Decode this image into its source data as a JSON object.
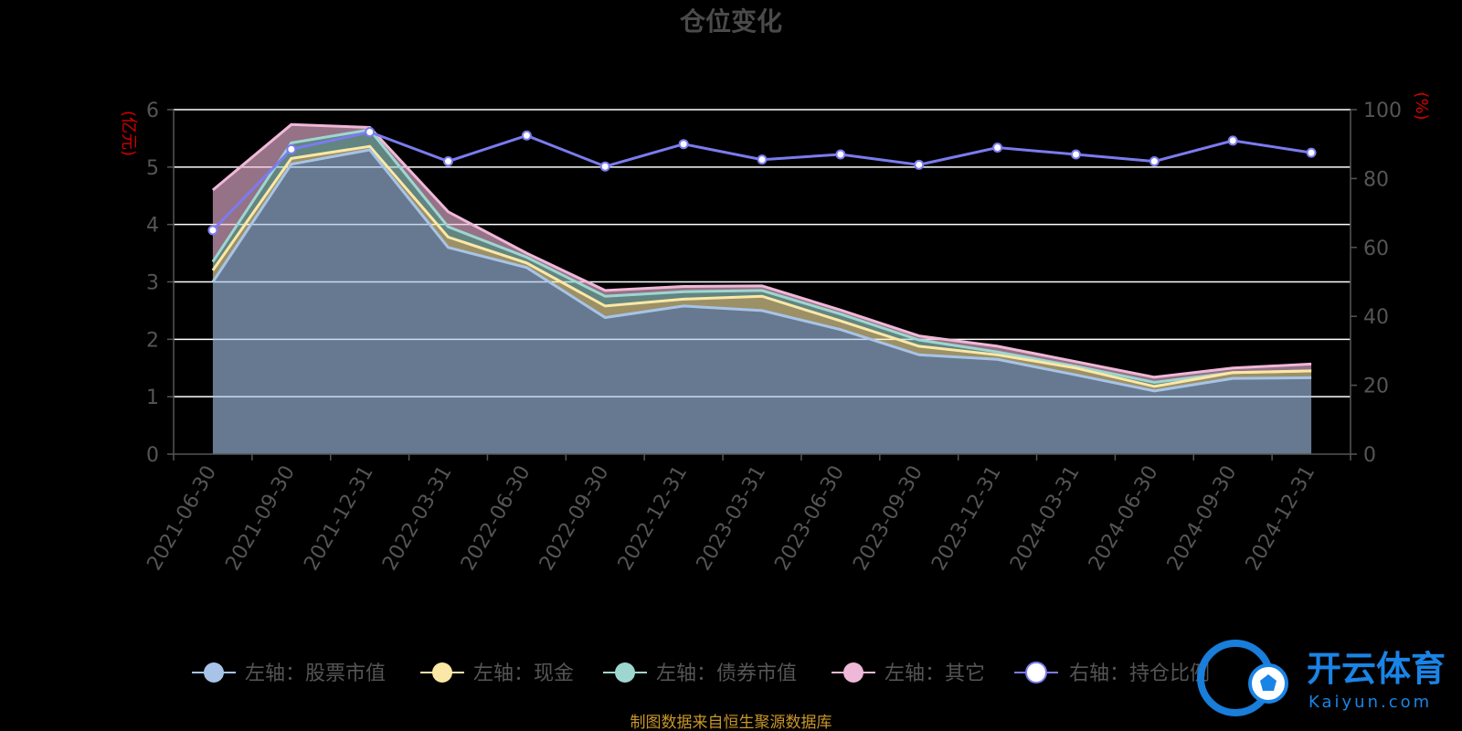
{
  "chart_data": {
    "type": "area",
    "title": "仓位变化",
    "left_axis_unit": "(亿元)",
    "right_axis_unit": "(%)",
    "categories": [
      "2021-06-30",
      "2021-09-30",
      "2021-12-31",
      "2022-03-31",
      "2022-06-30",
      "2022-09-30",
      "2022-12-31",
      "2023-03-31",
      "2023-06-30",
      "2023-09-30",
      "2023-12-31",
      "2024-03-31",
      "2024-06-30",
      "2024-09-30",
      "2024-12-31"
    ],
    "left_ylim": [
      0,
      6
    ],
    "left_ticks": [
      0,
      1,
      2,
      3,
      4,
      5,
      6
    ],
    "right_ylim": [
      0,
      100
    ],
    "right_ticks": [
      0,
      20,
      40,
      60,
      80,
      100
    ],
    "grid": true,
    "legend_position": "bottom",
    "stacked_series": [
      {
        "name": "左轴：股票市值",
        "color": "#a7c4e8",
        "values": [
          3.0,
          5.05,
          5.3,
          3.6,
          3.25,
          2.38,
          2.58,
          2.5,
          2.17,
          1.73,
          1.65,
          1.38,
          1.1,
          1.32,
          1.33
        ]
      },
      {
        "name": "左轴：现金",
        "color": "#fbe8a6",
        "values": [
          0.2,
          0.1,
          0.06,
          0.18,
          0.08,
          0.2,
          0.12,
          0.25,
          0.15,
          0.15,
          0.08,
          0.12,
          0.08,
          0.1,
          0.12
        ]
      },
      {
        "name": "左轴：债券市值",
        "color": "#9ed6d0",
        "values": [
          0.15,
          0.27,
          0.29,
          0.18,
          0.1,
          0.17,
          0.13,
          0.1,
          0.12,
          0.11,
          0.05,
          0.03,
          0.07,
          0.0,
          0.0
        ]
      },
      {
        "name": "左轴：其它",
        "color": "#f0b8d8",
        "values": [
          1.25,
          0.32,
          0.04,
          0.26,
          0.07,
          0.1,
          0.09,
          0.08,
          0.07,
          0.07,
          0.1,
          0.08,
          0.09,
          0.08,
          0.12
        ]
      }
    ],
    "line_series": {
      "name": "右轴：持仓比例",
      "color": "#7b7bf0",
      "values": [
        65,
        88.5,
        93.5,
        85,
        92.5,
        83.5,
        90,
        85.5,
        87,
        84,
        89,
        87,
        85,
        91,
        87.5
      ]
    }
  },
  "source_note": "制图数据来自恒生聚源数据库",
  "watermark": {
    "cn": "开云体育",
    "en": "Kaiyun.com"
  }
}
